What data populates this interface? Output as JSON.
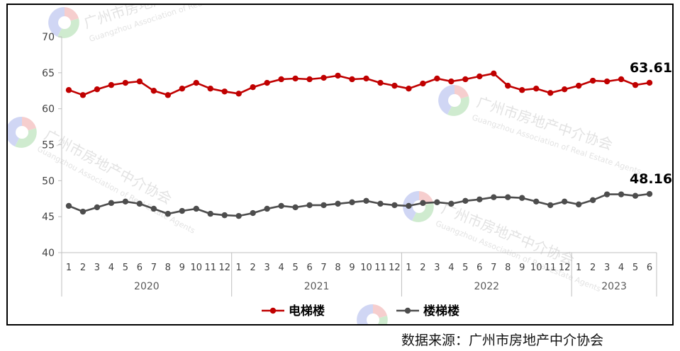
{
  "chart_data": {
    "type": "line",
    "title": "",
    "ylim": [
      40,
      70
    ],
    "yticks": [
      40,
      45,
      50,
      55,
      60,
      65,
      70
    ],
    "grid": false,
    "legend_position": "bottom",
    "months": [
      "1",
      "2",
      "3",
      "4",
      "5",
      "6",
      "7",
      "8",
      "9",
      "10",
      "11",
      "12",
      "1",
      "2",
      "3",
      "4",
      "5",
      "6",
      "7",
      "8",
      "9",
      "10",
      "11",
      "12",
      "1",
      "2",
      "3",
      "4",
      "5",
      "6",
      "7",
      "8",
      "9",
      "10",
      "11",
      "12",
      "1",
      "2",
      "3",
      "4",
      "5",
      "6"
    ],
    "years": [
      {
        "label": "2020",
        "count": 12
      },
      {
        "label": "2021",
        "count": 12
      },
      {
        "label": "2022",
        "count": 12
      },
      {
        "label": "2023",
        "count": 6
      }
    ],
    "series": [
      {
        "name": "电梯楼",
        "color": "#c00000",
        "values": [
          62.6,
          61.9,
          62.7,
          63.3,
          63.6,
          63.8,
          62.5,
          61.9,
          62.8,
          63.6,
          62.8,
          62.4,
          62.1,
          63.0,
          63.6,
          64.1,
          64.2,
          64.1,
          64.3,
          64.6,
          64.1,
          64.2,
          63.6,
          63.2,
          62.8,
          63.5,
          64.2,
          63.8,
          64.1,
          64.5,
          64.9,
          63.2,
          62.6,
          62.8,
          62.2,
          62.7,
          63.2,
          63.9,
          63.8,
          64.1,
          63.3,
          63.61
        ],
        "end_label": "63.61"
      },
      {
        "name": "楼梯楼",
        "color": "#4d4d4d",
        "values": [
          46.5,
          45.7,
          46.3,
          46.9,
          47.1,
          46.8,
          46.1,
          45.4,
          45.8,
          46.1,
          45.4,
          45.2,
          45.1,
          45.5,
          46.1,
          46.5,
          46.3,
          46.6,
          46.6,
          46.8,
          47.0,
          47.2,
          46.8,
          46.6,
          46.5,
          46.9,
          47.0,
          46.8,
          47.2,
          47.4,
          47.7,
          47.7,
          47.6,
          47.1,
          46.6,
          47.1,
          46.7,
          47.3,
          48.1,
          48.1,
          47.9,
          48.16
        ],
        "end_label": "48.16"
      }
    ]
  },
  "source_text": "数据来源：广州市房地产中介协会",
  "watermark": {
    "name": "广州市房地产中介协会",
    "english": "Guangzhou Association of Real Estate Agents"
  }
}
